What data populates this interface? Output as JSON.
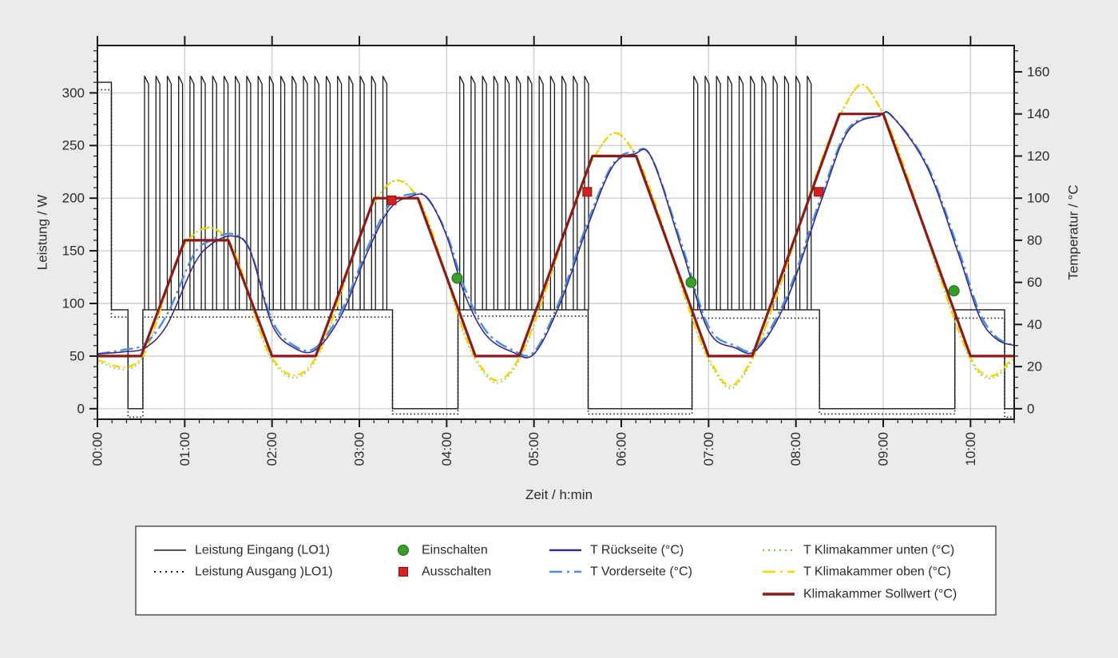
{
  "chart_data": {
    "type": "line",
    "xlabel": "Zeit / h:min",
    "ylabel_left": "Leistung / W",
    "ylabel_right": "Temperatur / °C",
    "x_unit": "hours",
    "xlim": [
      0,
      10.5
    ],
    "ylim_left": [
      -10,
      345
    ],
    "ylim_right": [
      -5,
      172.5
    ],
    "x_ticks": [
      0,
      1,
      2,
      3,
      4,
      5,
      6,
      7,
      8,
      9,
      10
    ],
    "x_tick_labels": [
      "00:00",
      "01:00",
      "02:00",
      "03:00",
      "04:00",
      "05:00",
      "06:00",
      "07:00",
      "08:00",
      "09:00",
      "10:00"
    ],
    "y_left_ticks": [
      0,
      50,
      100,
      150,
      200,
      250,
      300
    ],
    "y_left_tick_labels": [
      "0",
      "50",
      "100",
      "150",
      "200",
      "250",
      "300"
    ],
    "y_right_ticks": [
      0,
      20,
      40,
      60,
      80,
      100,
      120,
      140,
      160
    ],
    "y_right_tick_labels": [
      "0",
      "20",
      "40",
      "60",
      "80",
      "100",
      "120",
      "140",
      "160"
    ],
    "grid": true,
    "legend_position": "bottom",
    "series": [
      {
        "name": "Leistung Eingang (LO1)",
        "axis": "left",
        "color": "#1a1a1a",
        "style": "solid",
        "baseline_segments": [
          [
            0,
            0.1,
            310
          ],
          [
            0.16,
            0.34,
            94
          ],
          [
            0.35,
            0.51,
            0
          ],
          [
            0.52,
            3.37,
            94
          ],
          [
            3.38,
            4.12,
            0
          ],
          [
            4.13,
            5.61,
            94
          ],
          [
            5.62,
            6.8,
            0
          ],
          [
            6.81,
            8.26,
            94
          ],
          [
            8.27,
            9.81,
            0
          ],
          [
            9.82,
            10.38,
            94
          ],
          [
            10.39,
            10.5,
            0
          ]
        ],
        "pulse_windows": [
          [
            0.52,
            3.37
          ],
          [
            4.13,
            5.61
          ],
          [
            6.81,
            8.26
          ]
        ],
        "pulse_peak": 316,
        "pulse_period_h": 0.13
      },
      {
        "name": "Leistung Ausgang )LO1)",
        "axis": "left",
        "color": "#1a1a1a",
        "style": "dotted",
        "baseline_segments": [
          [
            0,
            0.1,
            303
          ],
          [
            0.16,
            0.34,
            87
          ],
          [
            0.35,
            0.51,
            -8
          ],
          [
            0.52,
            3.37,
            87
          ],
          [
            3.38,
            4.12,
            -5
          ],
          [
            4.13,
            5.61,
            88
          ],
          [
            5.62,
            6.8,
            -5
          ],
          [
            6.81,
            8.26,
            86
          ],
          [
            8.27,
            9.81,
            -5
          ],
          [
            9.82,
            10.38,
            86
          ],
          [
            10.39,
            10.5,
            -8
          ]
        ]
      },
      {
        "name": "Klimakammer Sollwert (°C)",
        "axis": "right",
        "color": "#8b1a1a",
        "style": "solid-thick",
        "x": [
          0,
          0.5,
          1.0,
          1.5,
          2.0,
          2.5,
          3.17,
          3.67,
          4.33,
          4.83,
          5.67,
          6.17,
          7.0,
          7.5,
          8.5,
          9.0,
          10.0,
          10.5
        ],
        "y": [
          25,
          25,
          80,
          80,
          25,
          25,
          100,
          100,
          25,
          25,
          120,
          120,
          25,
          25,
          140,
          140,
          25,
          25
        ]
      },
      {
        "name": "T Klimakammer oben (°C)",
        "axis": "right",
        "color": "#f5d400",
        "style": "dashdot",
        "x": [
          0,
          0.5,
          1.0,
          1.5,
          2.0,
          2.5,
          3.17,
          3.67,
          4.33,
          4.83,
          5.67,
          6.17,
          7.0,
          7.5,
          8.5,
          9.0,
          10.0,
          10.5
        ],
        "y": [
          23,
          24,
          78,
          80,
          24,
          24,
          98,
          100,
          24,
          24,
          118,
          120,
          24,
          24,
          139,
          140,
          24,
          24
        ]
      },
      {
        "name": "T Klimakammer unten (°C)",
        "axis": "right",
        "color": "#7cc242",
        "style": "dotted",
        "x": [
          0,
          0.5,
          1.0,
          1.5,
          2.0,
          2.5,
          3.17,
          3.67,
          4.33,
          4.83,
          5.67,
          6.17,
          7.0,
          7.5,
          8.5,
          9.0,
          10.0,
          10.5
        ],
        "y": [
          22,
          23,
          78,
          80,
          23,
          23,
          98,
          100,
          23,
          23,
          118,
          120,
          23,
          23,
          139,
          140,
          23,
          23
        ]
      },
      {
        "name": "T Rückseite (°C)",
        "axis": "right",
        "color": "#3b2a8c",
        "style": "solid",
        "x": [
          0,
          0.3,
          0.55,
          0.8,
          1.1,
          1.3,
          1.55,
          1.75,
          2.0,
          2.25,
          2.5,
          2.8,
          3.1,
          3.35,
          3.6,
          3.78,
          4.0,
          4.2,
          4.45,
          4.75,
          5.0,
          5.3,
          5.6,
          5.9,
          6.15,
          6.35,
          6.7,
          7.0,
          7.3,
          7.55,
          7.9,
          8.3,
          8.6,
          8.95,
          9.1,
          9.5,
          9.85,
          10.1,
          10.3,
          10.5
        ],
        "y": [
          26,
          27,
          29,
          40,
          68,
          78,
          82,
          75,
          40,
          29,
          28,
          45,
          75,
          95,
          101,
          100,
          82,
          55,
          35,
          27,
          26,
          50,
          85,
          115,
          121,
          119,
          75,
          37,
          29,
          28,
          52,
          100,
          132,
          139,
          139,
          115,
          75,
          44,
          33,
          30
        ]
      },
      {
        "name": "T Vorderseite (°C)",
        "axis": "right",
        "color": "#4a90d9",
        "style": "longdash-dot",
        "x": [
          0,
          0.3,
          0.55,
          0.8,
          1.1,
          1.3,
          1.55,
          1.75,
          2.0,
          2.25,
          2.5,
          2.8,
          3.1,
          3.35,
          3.6,
          3.78,
          4.0,
          4.2,
          4.45,
          4.75,
          5.0,
          5.3,
          5.6,
          5.9,
          6.15,
          6.35,
          6.7,
          7.0,
          7.3,
          7.55,
          7.9,
          8.3,
          8.6,
          8.95,
          9.1,
          9.5,
          9.85,
          10.1,
          10.3,
          10.5
        ],
        "y": [
          26,
          28,
          31,
          45,
          73,
          80,
          83,
          75,
          42,
          30,
          29,
          47,
          77,
          97,
          102,
          100,
          83,
          58,
          37,
          28,
          27,
          52,
          87,
          116,
          122,
          119,
          77,
          39,
          30,
          29,
          54,
          102,
          133,
          139,
          139,
          116,
          77,
          46,
          34,
          30
        ]
      },
      {
        "name": "Einschalten",
        "axis": "right",
        "type": "scatter",
        "marker": "circle",
        "color": "#3a9c2b",
        "x": [
          4.12,
          6.8,
          9.81
        ],
        "y": [
          62,
          60,
          56
        ]
      },
      {
        "name": "Ausschalten",
        "axis": "right",
        "type": "scatter",
        "marker": "square",
        "color": "#d42020",
        "x": [
          3.37,
          5.61,
          8.26
        ],
        "y": [
          99,
          103,
          103
        ]
      }
    ],
    "legend": [
      {
        "label": "Leistung Eingang (LO1)",
        "symbol": "line-solid",
        "color": "#1a1a1a",
        "column": 0,
        "row": 0
      },
      {
        "label": "Leistung Ausgang )LO1)",
        "symbol": "line-dotted",
        "color": "#1a1a1a",
        "column": 0,
        "row": 1
      },
      {
        "label": "Einschalten",
        "symbol": "circle",
        "color": "#3a9c2b",
        "column": 1,
        "row": 0
      },
      {
        "label": "Ausschalten",
        "symbol": "square",
        "color": "#d42020",
        "column": 1,
        "row": 1
      },
      {
        "label": "T Rückseite (°C)",
        "symbol": "line-solid",
        "color": "#3b2a8c",
        "column": 2,
        "row": 0
      },
      {
        "label": "T Vorderseite (°C)",
        "symbol": "line-dash-dot",
        "color": "#4a90d9",
        "column": 2,
        "row": 1
      },
      {
        "label": "T Klimakammer unten (°C)",
        "symbol": "line-dotted",
        "color": "#7cc242",
        "column": 3,
        "row": 0
      },
      {
        "label": "T Klimakammer oben (°C)",
        "symbol": "line-dash-dot",
        "color": "#f5d400",
        "column": 3,
        "row": 1
      },
      {
        "label": "Klimakammer Sollwert (°C)",
        "symbol": "line-thick",
        "color": "#8b1a1a",
        "column": 3,
        "row": 2
      }
    ]
  }
}
